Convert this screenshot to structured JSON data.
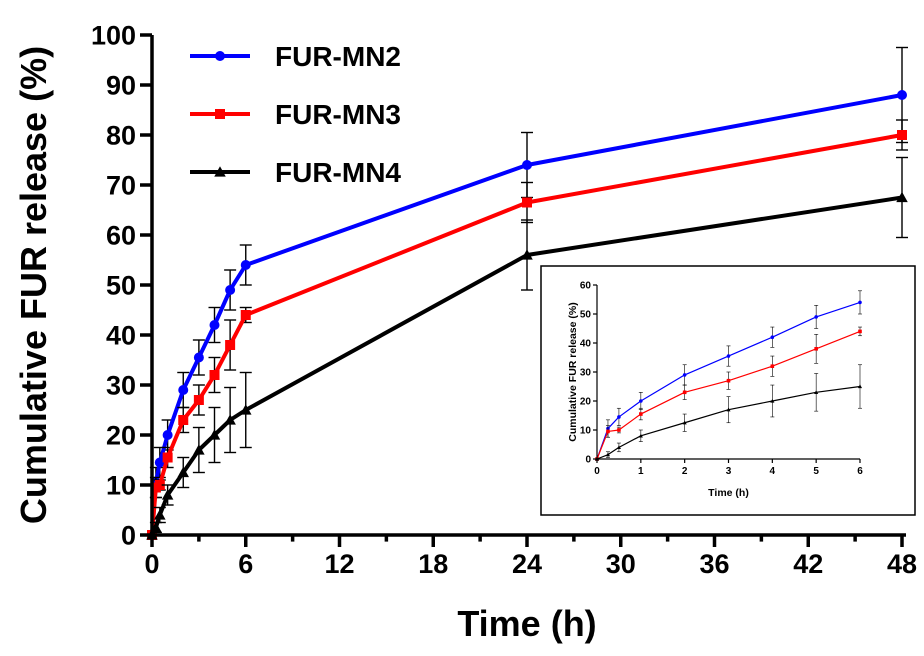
{
  "chart_data": [
    {
      "type": "line",
      "title": "",
      "xlabel": "Time (h)",
      "ylabel": "Cumulative FUR release (%)",
      "xlim": [
        0,
        48
      ],
      "ylim": [
        0,
        100
      ],
      "xticks": [
        0,
        6,
        12,
        18,
        24,
        30,
        36,
        42,
        48
      ],
      "yticks": [
        0,
        10,
        20,
        30,
        40,
        50,
        60,
        70,
        80,
        90,
        100
      ],
      "grid": false,
      "legend_position": "top-left",
      "x": [
        0,
        0.25,
        0.5,
        1,
        2,
        3,
        4,
        5,
        6,
        24,
        48
      ],
      "series": [
        {
          "name": "FUR-MN2",
          "color": "#0000ff",
          "marker": "circle",
          "values": [
            0,
            10.5,
            14.5,
            20,
            29,
            35.5,
            42,
            49,
            54,
            74,
            88
          ],
          "errors": [
            0,
            3,
            3,
            3,
            3.5,
            3.5,
            3.5,
            4,
            4,
            6.5,
            9.5
          ]
        },
        {
          "name": "FUR-MN3",
          "color": "#ff0000",
          "marker": "square",
          "values": [
            0,
            9.5,
            10,
            15.5,
            23,
            27,
            32,
            38,
            44,
            66.5,
            80
          ],
          "errors": [
            0,
            2,
            1,
            2,
            2.5,
            3,
            3.5,
            5,
            1.5,
            4,
            3
          ]
        },
        {
          "name": "FUR-MN4",
          "color": "#000000",
          "marker": "triangle",
          "values": [
            0,
            1.5,
            4,
            8,
            12.5,
            17,
            20,
            23,
            25,
            56,
            67.5
          ],
          "errors": [
            0,
            1,
            1.5,
            2,
            3,
            4.5,
            5.5,
            6.5,
            7.5,
            7,
            8
          ]
        }
      ]
    },
    {
      "type": "line",
      "title": "",
      "xlabel": "Time (h)",
      "ylabel": "Cumulative FUR release (%)",
      "xlim": [
        0,
        6
      ],
      "ylim": [
        0,
        60
      ],
      "xticks": [
        0,
        1,
        2,
        3,
        4,
        5,
        6
      ],
      "yticks": [
        0,
        10,
        20,
        30,
        40,
        50,
        60
      ],
      "grid": false,
      "x": [
        0,
        0.25,
        0.5,
        1,
        2,
        3,
        4,
        5,
        6
      ],
      "series": [
        {
          "color": "#0000ff",
          "marker": "circle",
          "values": [
            0,
            10.5,
            14.5,
            20,
            29,
            35.5,
            42,
            49,
            54
          ],
          "errors": [
            0,
            3,
            3,
            3,
            3.5,
            3.5,
            3.5,
            4,
            4
          ]
        },
        {
          "color": "#ff0000",
          "marker": "square",
          "values": [
            0,
            9.5,
            10,
            15.5,
            23,
            27,
            32,
            38,
            44
          ],
          "errors": [
            0,
            2,
            1,
            2,
            2.5,
            3,
            3.5,
            5,
            1.5
          ]
        },
        {
          "color": "#000000",
          "marker": "triangle",
          "values": [
            0,
            1.5,
            4,
            8,
            12.5,
            17,
            20,
            23,
            25
          ],
          "errors": [
            0,
            1,
            1.5,
            2,
            3,
            4.5,
            5.5,
            6.5,
            7.5
          ]
        }
      ]
    }
  ]
}
